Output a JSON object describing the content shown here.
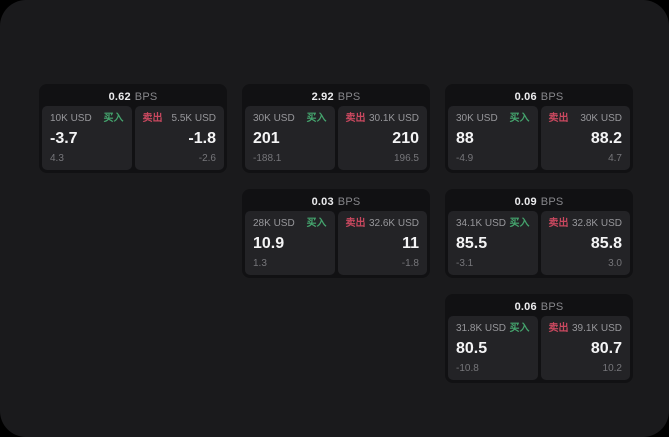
{
  "theme": {
    "outer_bg": "#000000",
    "panel_bg": "#1a1a1c",
    "card_bg": "#111113",
    "tile_bg": "#232326",
    "buy_color": "#45a56e",
    "sell_color": "#c9485f"
  },
  "labels": {
    "bps_suffix": "BPS",
    "buy": "买入",
    "sell": "卖出"
  },
  "cards": [
    {
      "bps": "0.62",
      "row": 1,
      "col": 1,
      "buy": {
        "amount": "10K USD",
        "price": "-3.7",
        "delta": "4.3"
      },
      "sell": {
        "amount": "5.5K USD",
        "price": "-1.8",
        "delta": "-2.6"
      }
    },
    {
      "bps": "2.92",
      "row": 1,
      "col": 2,
      "buy": {
        "amount": "30K USD",
        "price": "201",
        "delta": "-188.1"
      },
      "sell": {
        "amount": "30.1K USD",
        "price": "210",
        "delta": "196.5"
      }
    },
    {
      "bps": "0.06",
      "row": 1,
      "col": 3,
      "buy": {
        "amount": "30K USD",
        "price": "88",
        "delta": "-4.9"
      },
      "sell": {
        "amount": "30K USD",
        "price": "88.2",
        "delta": "4.7"
      }
    },
    {
      "bps": "0.03",
      "row": 2,
      "col": 2,
      "buy": {
        "amount": "28K USD",
        "price": "10.9",
        "delta": "1.3"
      },
      "sell": {
        "amount": "32.6K USD",
        "price": "11",
        "delta": "-1.8"
      }
    },
    {
      "bps": "0.09",
      "row": 2,
      "col": 3,
      "buy": {
        "amount": "34.1K USD",
        "price": "85.5",
        "delta": "-3.1"
      },
      "sell": {
        "amount": "32.8K USD",
        "price": "85.8",
        "delta": "3.0"
      }
    },
    {
      "bps": "0.06",
      "row": 3,
      "col": 3,
      "buy": {
        "amount": "31.8K USD",
        "price": "80.5",
        "delta": "-10.8"
      },
      "sell": {
        "amount": "39.1K USD",
        "price": "80.7",
        "delta": "10.2"
      }
    }
  ]
}
